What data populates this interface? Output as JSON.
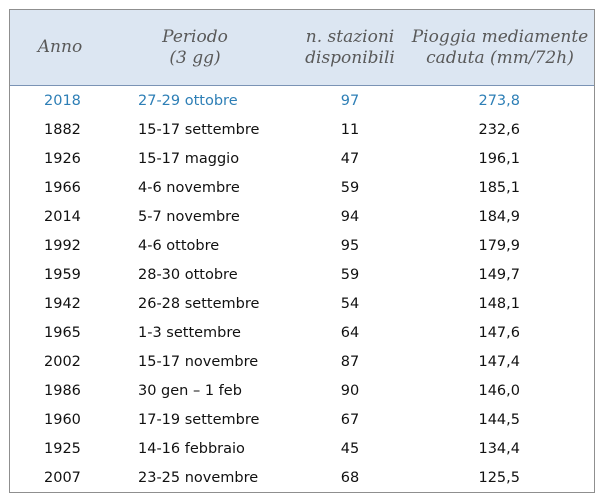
{
  "table": {
    "headers": {
      "anno": "Anno",
      "periodo": [
        "Periodo",
        "(3 gg)"
      ],
      "stazioni": [
        "n. stazioni",
        "disponibili"
      ],
      "pioggia": [
        "Pioggia mediamente",
        "caduta (mm/72h)"
      ]
    },
    "rows": [
      {
        "anno": "2018",
        "periodo": "27-29 ottobre",
        "stazioni": "97",
        "pioggia": "273,8"
      },
      {
        "anno": "1882",
        "periodo": "15-17 settembre",
        "stazioni": "11",
        "pioggia": "232,6"
      },
      {
        "anno": "1926",
        "periodo": "15-17 maggio",
        "stazioni": "47",
        "pioggia": "196,1"
      },
      {
        "anno": "1966",
        "periodo": "4-6 novembre",
        "stazioni": "59",
        "pioggia": "185,1"
      },
      {
        "anno": "2014",
        "periodo": "5-7 novembre",
        "stazioni": "94",
        "pioggia": "184,9"
      },
      {
        "anno": "1992",
        "periodo": "4-6 ottobre",
        "stazioni": "95",
        "pioggia": "179,9"
      },
      {
        "anno": "1959",
        "periodo": "28-30 ottobre",
        "stazioni": "59",
        "pioggia": "149,7"
      },
      {
        "anno": "1942",
        "periodo": "26-28 settembre",
        "stazioni": "54",
        "pioggia": "148,1"
      },
      {
        "anno": "1965",
        "periodo": "1-3 settembre",
        "stazioni": "64",
        "pioggia": "147,6"
      },
      {
        "anno": "2002",
        "periodo": "15-17 novembre",
        "stazioni": "87",
        "pioggia": "147,4"
      },
      {
        "anno": "1986",
        "periodo": "30 gen – 1 feb",
        "stazioni": "90",
        "pioggia": "146,0"
      },
      {
        "anno": "1960",
        "periodo": "17-19 settembre",
        "stazioni": "67",
        "pioggia": "144,5"
      },
      {
        "anno": "1925",
        "periodo": "14-16 febbraio",
        "stazioni": "45",
        "pioggia": "134,4"
      },
      {
        "anno": "2007",
        "periodo": "23-25 novembre",
        "stazioni": "68",
        "pioggia": "125,5"
      }
    ],
    "highlight_color": "#2e7fb6",
    "header_bg": "#dce6f2"
  }
}
